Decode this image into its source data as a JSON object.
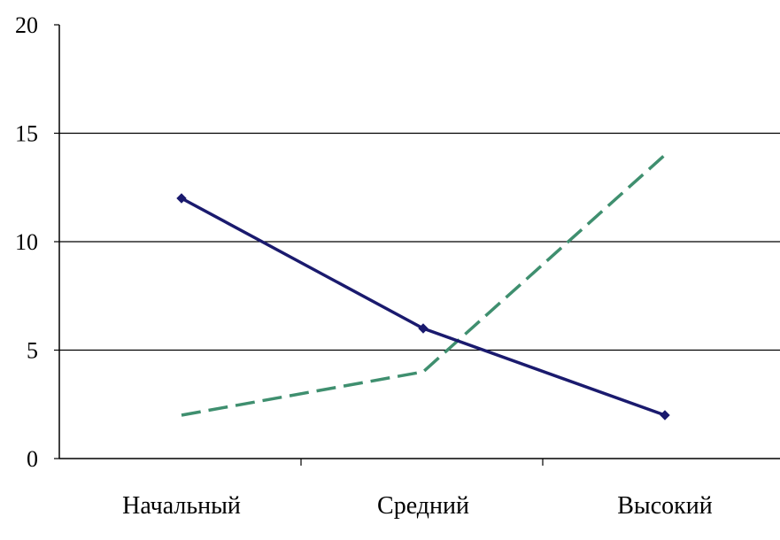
{
  "chart_data": {
    "type": "line",
    "categories": [
      "Начальный",
      "Средний",
      "Высокий"
    ],
    "series": [
      {
        "values": [
          12,
          6,
          2
        ],
        "color": "#1a1a6e",
        "style": "solid",
        "marker": "diamond"
      },
      {
        "values": [
          2,
          4,
          14
        ],
        "color": "#3f8f6f",
        "style": "dashed",
        "marker": "none"
      }
    ],
    "yticks": [
      "0",
      "5",
      "10",
      "15",
      "20"
    ],
    "ylim": [
      0,
      20
    ],
    "grid": "horizontal",
    "legend": "none",
    "title": "",
    "xlabel": "",
    "ylabel": ""
  }
}
